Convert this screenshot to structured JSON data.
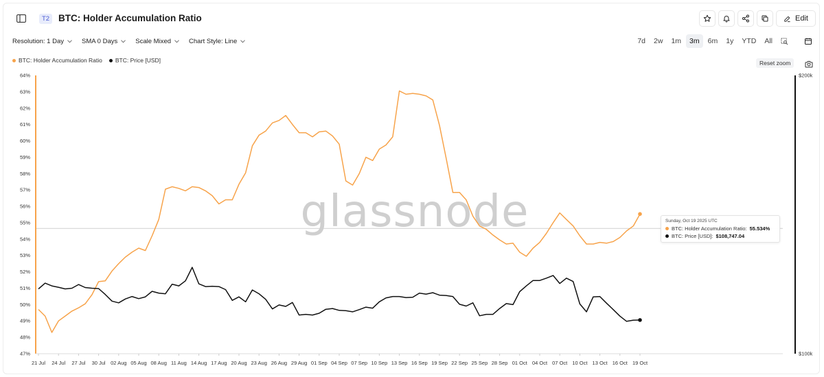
{
  "header": {
    "tier_badge": "T2",
    "title": "BTC: Holder Accumulation Ratio",
    "edit_label": "Edit"
  },
  "toolbar": {
    "resolution": "Resolution: 1 Day",
    "sma": "SMA 0 Days",
    "scale": "Scale Mixed",
    "chart_style": "Chart Style: Line"
  },
  "ranges": [
    "7d",
    "2w",
    "1m",
    "3m",
    "6m",
    "1y",
    "YTD",
    "All"
  ],
  "active_range": "3m",
  "reset_zoom": "Reset zoom",
  "watermark": "glassnode",
  "tooltip": {
    "date": "Sunday, Oct 19 2025 UTC",
    "ratio_label": "BTC: Holder Accumulation Ratio:",
    "ratio_value": "55.534%",
    "price_label": "BTC: Price [USD]:",
    "price_value": "$108,747.04"
  },
  "colors": {
    "ratio": "#f7a34a",
    "price": "#111111"
  },
  "chart_data": {
    "type": "line",
    "x_tick_labels": [
      "21 Jul",
      "24 Jul",
      "27 Jul",
      "30 Jul",
      "02 Aug",
      "05 Aug",
      "08 Aug",
      "11 Aug",
      "14 Aug",
      "17 Aug",
      "20 Aug",
      "23 Aug",
      "26 Aug",
      "29 Aug",
      "01 Sep",
      "04 Sep",
      "07 Sep",
      "10 Sep",
      "13 Sep",
      "16 Sep",
      "19 Sep",
      "22 Sep",
      "25 Sep",
      "28 Sep",
      "01 Oct",
      "04 Oct",
      "07 Oct",
      "10 Oct",
      "13 Oct",
      "16 Oct",
      "19 Oct"
    ],
    "x_start": "21 Jul",
    "x_end": "19 Oct",
    "y_left": {
      "ticks": [
        "47%",
        "48%",
        "49%",
        "50%",
        "51%",
        "52%",
        "53%",
        "54%",
        "55%",
        "56%",
        "57%",
        "58%",
        "59%",
        "60%",
        "61%",
        "62%",
        "63%",
        "64%"
      ],
      "range": [
        47,
        64
      ]
    },
    "y_right": {
      "ticks": [
        "$100k",
        "$200k"
      ],
      "range": [
        100000,
        200000
      ],
      "scale": "log"
    },
    "legend_placement": "top-left",
    "series": [
      {
        "name": "BTC: Holder Accumulation Ratio",
        "axis": "left",
        "values": [
          49.7,
          49.3,
          48.3,
          49.0,
          49.3,
          49.6,
          49.8,
          50.05,
          50.6,
          51.4,
          51.45,
          52.05,
          52.5,
          52.9,
          53.2,
          53.45,
          53.3,
          54.2,
          55.2,
          57.05,
          57.2,
          57.1,
          56.95,
          57.2,
          57.15,
          56.95,
          56.65,
          56.15,
          56.4,
          56.4,
          57.35,
          58.05,
          59.7,
          60.35,
          60.6,
          61.1,
          61.25,
          61.55,
          61.0,
          60.5,
          60.5,
          60.25,
          60.55,
          60.6,
          60.3,
          59.8,
          57.55,
          57.3,
          58.0,
          59.0,
          58.8,
          59.5,
          59.75,
          60.25,
          63.05,
          62.85,
          62.9,
          62.85,
          62.75,
          62.5,
          60.95,
          58.95,
          56.85,
          56.85,
          56.4,
          55.4,
          54.8,
          54.6,
          54.25,
          53.95,
          53.7,
          53.75,
          53.2,
          52.95,
          53.45,
          53.8,
          54.35,
          55.0,
          55.6,
          55.2,
          54.8,
          54.2,
          53.7,
          53.7,
          53.8,
          53.75,
          53.85,
          54.1,
          54.5,
          54.8,
          55.534
        ]
      },
      {
        "name": "BTC: Price [USD]",
        "axis": "right",
        "values": [
          117500,
          119200,
          118400,
          118000,
          117500,
          117700,
          118800,
          117900,
          117700,
          117600,
          115900,
          114000,
          113500,
          114600,
          115300,
          114700,
          115200,
          116800,
          116300,
          116100,
          118900,
          118400,
          119900,
          124000,
          119000,
          118200,
          118300,
          118200,
          117300,
          114200,
          115200,
          113800,
          117200,
          116100,
          114500,
          111800,
          112900,
          112500,
          113600,
          110100,
          110300,
          110100,
          110600,
          111700,
          111900,
          111400,
          111300,
          111000,
          111600,
          112300,
          112000,
          113800,
          114900,
          115300,
          115300,
          115000,
          115100,
          116300,
          116000,
          116400,
          115700,
          115600,
          115300,
          113100,
          112600,
          113500,
          109900,
          110300,
          110300,
          111900,
          113300,
          113000,
          116700,
          118400,
          120000,
          120000,
          120700,
          121500,
          119100,
          120700,
          119700,
          113200,
          111000,
          115200,
          115300,
          113400,
          111600,
          109800,
          108400,
          108700,
          108747.04
        ]
      }
    ]
  }
}
